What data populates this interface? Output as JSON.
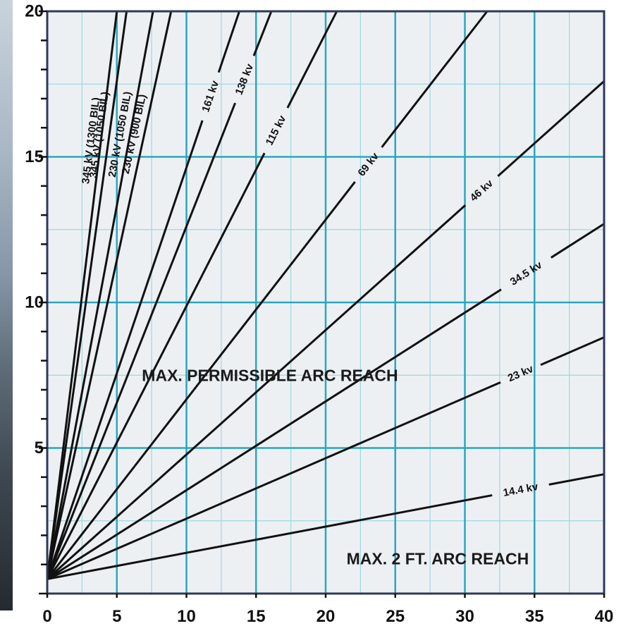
{
  "colors": {
    "plot_background": "#edf0f3",
    "major_grid": "#2aa7c0",
    "minor_grid": "#9ed7e3",
    "frame": "#2d3a57",
    "lines": "#111111"
  },
  "chart_data": {
    "type": "line",
    "xlim": [
      0,
      40
    ],
    "ylim": [
      0,
      20
    ],
    "x_ticks": [
      0,
      5,
      10,
      15,
      20,
      25,
      30,
      35,
      40
    ],
    "y_ticks": [
      5,
      10,
      15,
      20
    ],
    "grid": true,
    "series": [
      {
        "name": "14.4 kv",
        "x": [
          0,
          40
        ],
        "y": [
          0.5,
          4.1
        ]
      },
      {
        "name": "23 kv",
        "x": [
          0,
          40
        ],
        "y": [
          0.5,
          8.8
        ]
      },
      {
        "name": "34.5 kv",
        "x": [
          0,
          40
        ],
        "y": [
          0.5,
          12.7
        ]
      },
      {
        "name": "46 kv",
        "x": [
          0,
          40
        ],
        "y": [
          0.5,
          17.6
        ]
      },
      {
        "name": "69 kv",
        "x": [
          0,
          31.6
        ],
        "y": [
          0.5,
          20
        ]
      },
      {
        "name": "115 kv",
        "x": [
          0,
          20.8
        ],
        "y": [
          0.5,
          20
        ]
      },
      {
        "name": "138 kv",
        "x": [
          0,
          16.1
        ],
        "y": [
          0.5,
          20
        ]
      },
      {
        "name": "161 kv",
        "x": [
          0,
          13.8
        ],
        "y": [
          0.5,
          20
        ]
      },
      {
        "name": "230 kV (900 BIL)",
        "x": [
          0,
          8.9
        ],
        "y": [
          0.5,
          20
        ]
      },
      {
        "name": "230 kV (1050 BIL)",
        "x": [
          0,
          7.6
        ],
        "y": [
          0.5,
          20
        ]
      },
      {
        "name": "345 kV (1050 BIL)",
        "x": [
          0,
          5.7
        ],
        "y": [
          0.5,
          20
        ]
      },
      {
        "name": "345 kV (1300 BIL)",
        "x": [
          0,
          5.0
        ],
        "y": [
          0.5,
          20
        ]
      }
    ],
    "annotations": [
      {
        "text": "MAX. PERMISSIBLE ARC REACH",
        "x": 6.8,
        "y": 7.3
      },
      {
        "text": "MAX. 2 FT. ARC REACH",
        "x": 21.5,
        "y": 1.0
      }
    ]
  }
}
